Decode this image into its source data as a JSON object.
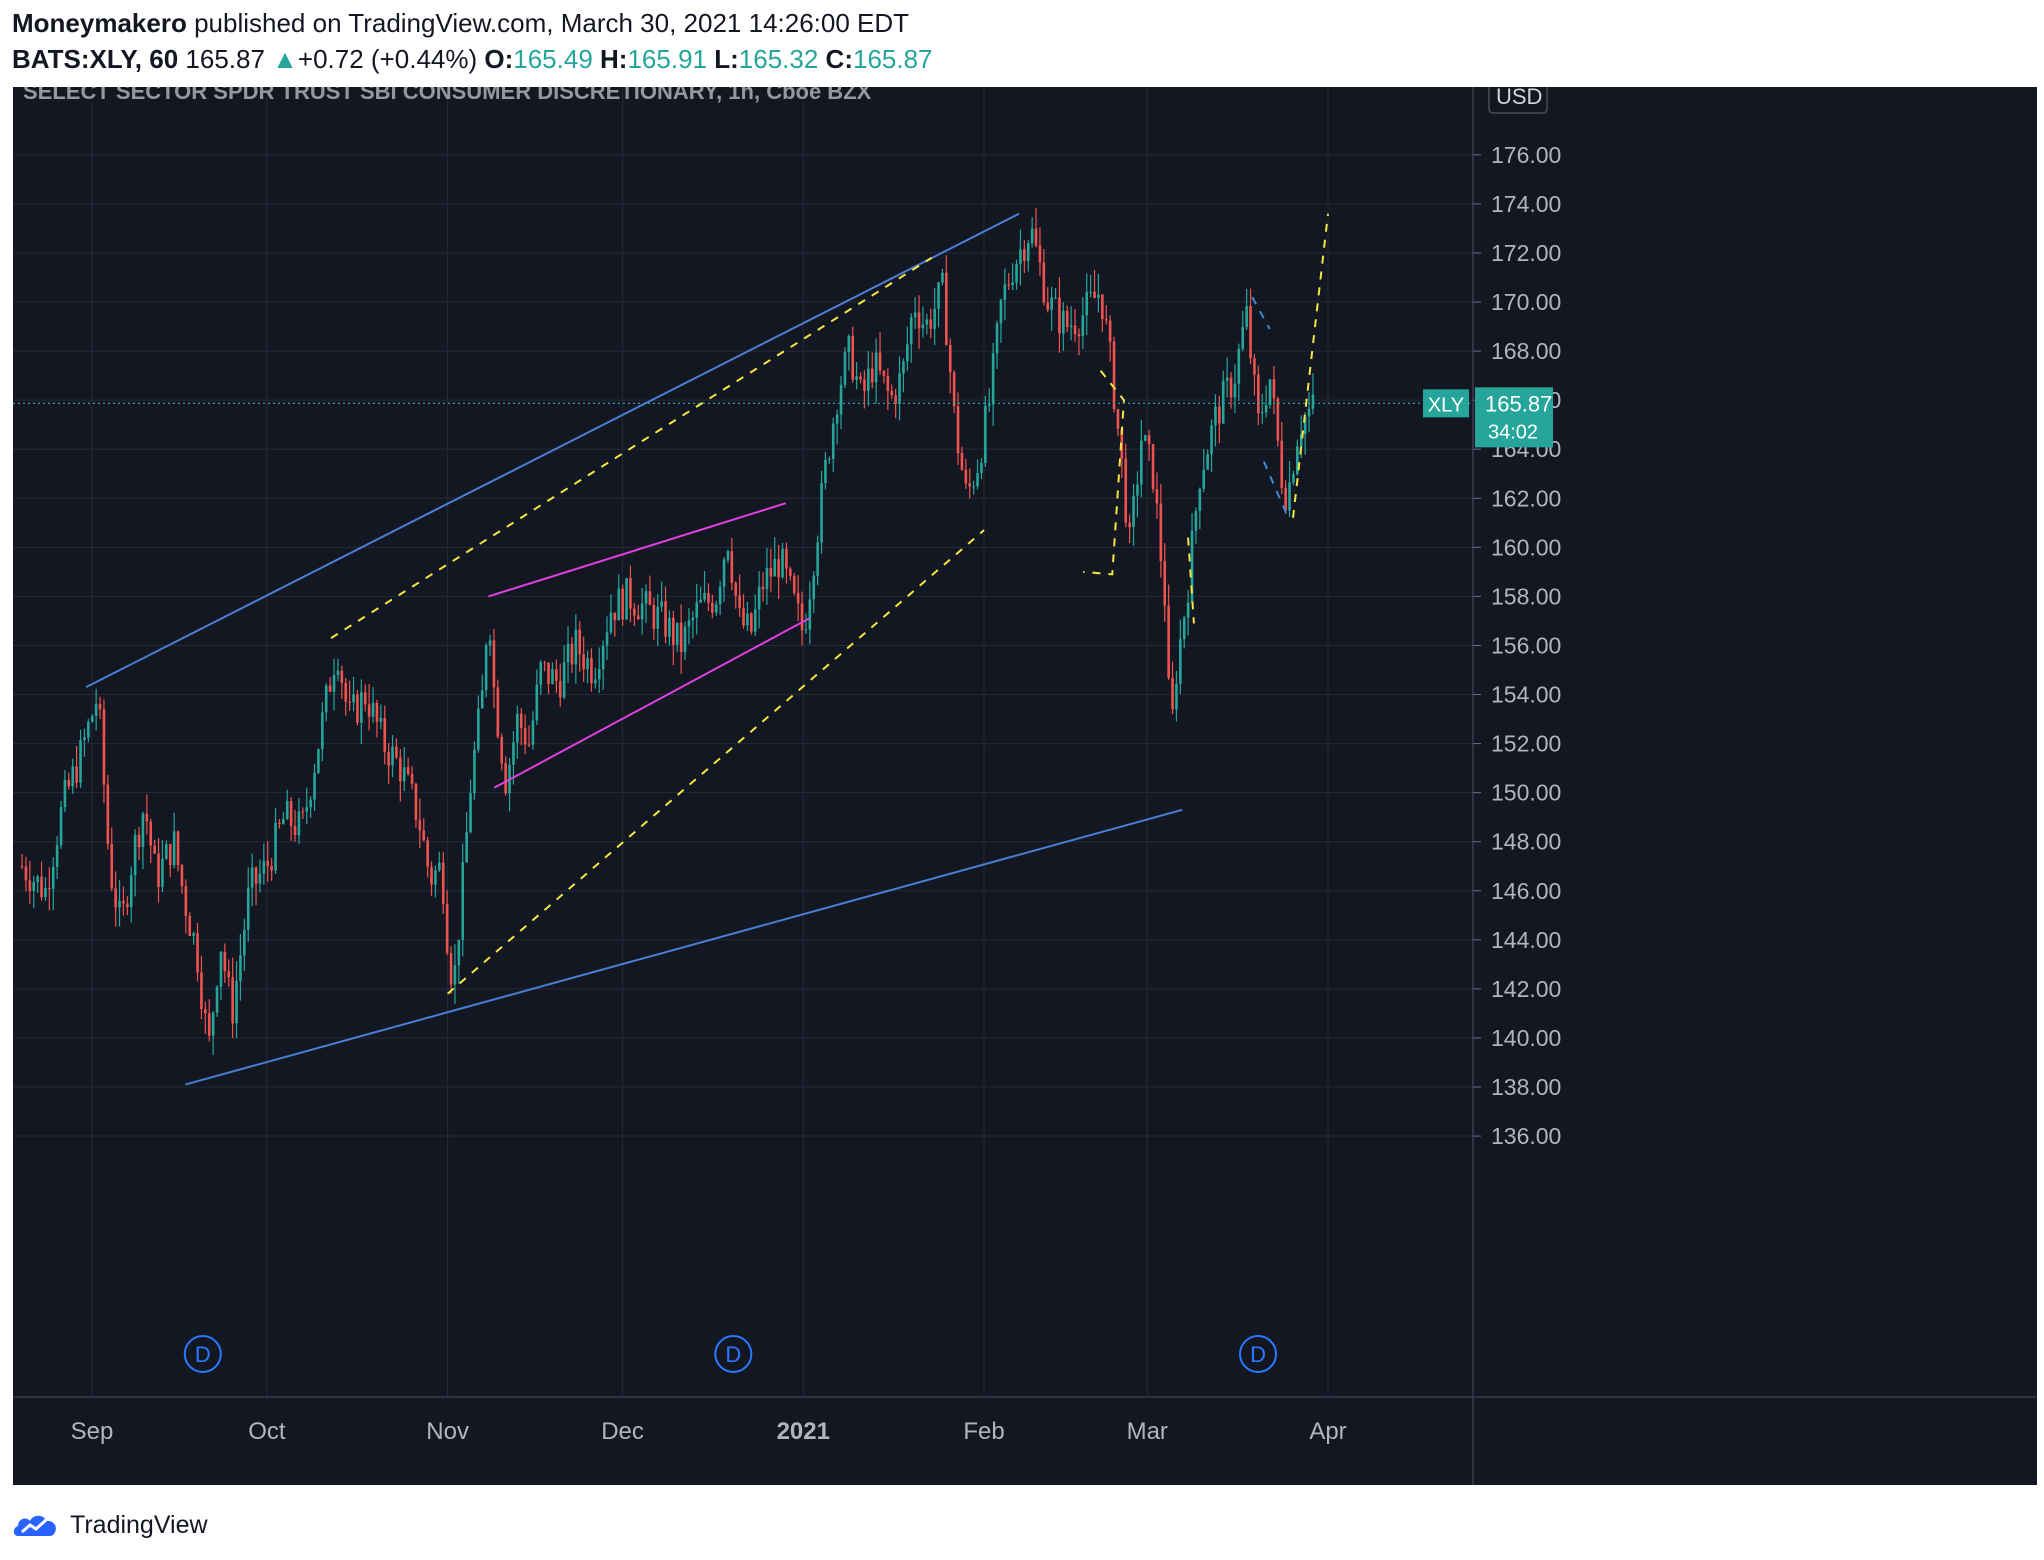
{
  "header": {
    "author": "Moneymakero",
    "published_text": "published on TradingView.com, March 30, 2021 14:26:00 EDT",
    "symbol": "BATS:XLY, 60",
    "last": "165.87",
    "change_arrow": "▲",
    "change": "+0.72 (+0.44%)",
    "o_label": "O:",
    "o": "165.49",
    "h_label": "H:",
    "h": "165.91",
    "l_label": "L:",
    "l": "165.32",
    "c_label": "C:",
    "c": "165.87"
  },
  "footer": {
    "logo_icon": "tradingview-cloud-icon",
    "brand": "TradingView"
  },
  "colors": {
    "up": "#26a69a",
    "down": "#ef5350",
    "trend_blue": "#4a7fd4",
    "channel_magenta": "#e040e0",
    "dashed_yellow": "#f5e642",
    "dashed_blue": "#3a8ad8",
    "background": "#131722"
  },
  "chart_data": {
    "type": "candlestick",
    "title": "SELECT SECTOR SPDR TRUST SBI CONSUMER DISCRETIONARY, 1h, Cboe BZX",
    "currency": "USD",
    "ylim": [
      136,
      176
    ],
    "y_ticks": [
      "136.00",
      "138.00",
      "140.00",
      "142.00",
      "144.00",
      "146.00",
      "148.00",
      "150.00",
      "152.00",
      "154.00",
      "156.00",
      "158.00",
      "160.00",
      "162.00",
      "164.00",
      "166.00",
      "168.00",
      "170.00",
      "172.00",
      "174.00",
      "176.00"
    ],
    "x_ticks": [
      {
        "label": "Sep",
        "date": "2020-09-01"
      },
      {
        "label": "Oct",
        "date": "2020-10-01"
      },
      {
        "label": "Nov",
        "date": "2020-11-01"
      },
      {
        "label": "Dec",
        "date": "2020-12-01"
      },
      {
        "label": "2021",
        "date": "2021-01-01",
        "bold": true
      },
      {
        "label": "Feb",
        "date": "2021-02-01"
      },
      {
        "label": "Mar",
        "date": "2021-03-01"
      },
      {
        "label": "Apr",
        "date": "2021-04-01"
      }
    ],
    "grid": true,
    "last_price": {
      "symbol": "XLY",
      "value": 165.87,
      "value_label": "165.87",
      "countdown": "34:02"
    },
    "dividend_markers": [
      {
        "date": "2020-09-20",
        "label": "D"
      },
      {
        "date": "2020-12-20",
        "label": "D"
      },
      {
        "date": "2021-03-20",
        "label": "D"
      }
    ],
    "price_path": [
      [
        "2020-08-20",
        147.0
      ],
      [
        "2020-08-24",
        146.0
      ],
      [
        "2020-08-27",
        149.5
      ],
      [
        "2020-08-30",
        151.5
      ],
      [
        "2020-09-02",
        154.0
      ],
      [
        "2020-09-04",
        147.0
      ],
      [
        "2020-09-06",
        144.5
      ],
      [
        "2020-09-08",
        147.5
      ],
      [
        "2020-09-10",
        149.5
      ],
      [
        "2020-09-12",
        146.5
      ],
      [
        "2020-09-15",
        148.0
      ],
      [
        "2020-09-17",
        145.5
      ],
      [
        "2020-09-19",
        143.5
      ],
      [
        "2020-09-21",
        139.5
      ],
      [
        "2020-09-23",
        144.0
      ],
      [
        "2020-09-25",
        141.0
      ],
      [
        "2020-09-28",
        146.0
      ],
      [
        "2020-10-01",
        147.0
      ],
      [
        "2020-10-04",
        149.0
      ],
      [
        "2020-10-07",
        148.5
      ],
      [
        "2020-10-09",
        151.0
      ],
      [
        "2020-10-11",
        153.5
      ],
      [
        "2020-10-13",
        156.0
      ],
      [
        "2020-10-15",
        153.0
      ],
      [
        "2020-10-18",
        154.0
      ],
      [
        "2020-10-21",
        152.0
      ],
      [
        "2020-10-24",
        151.0
      ],
      [
        "2020-10-27",
        149.0
      ],
      [
        "2020-10-29",
        146.5
      ],
      [
        "2020-10-31",
        147.0
      ],
      [
        "2020-11-01",
        144.0
      ],
      [
        "2020-11-02",
        142.0
      ],
      [
        "2020-11-04",
        147.5
      ],
      [
        "2020-11-05",
        150.5
      ],
      [
        "2020-11-07",
        154.0
      ],
      [
        "2020-11-08",
        158.0
      ],
      [
        "2020-11-09",
        154.0
      ],
      [
        "2020-11-11",
        150.5
      ],
      [
        "2020-11-13",
        153.0
      ],
      [
        "2020-11-15",
        152.0
      ],
      [
        "2020-11-17",
        155.0
      ],
      [
        "2020-11-20",
        154.5
      ],
      [
        "2020-11-23",
        156.0
      ],
      [
        "2020-11-26",
        155.0
      ],
      [
        "2020-11-29",
        157.5
      ],
      [
        "2020-12-02",
        158.0
      ],
      [
        "2020-12-05",
        157.5
      ],
      [
        "2020-12-08",
        157.0
      ],
      [
        "2020-12-11",
        156.0
      ],
      [
        "2020-12-14",
        157.5
      ],
      [
        "2020-12-17",
        158.0
      ],
      [
        "2020-12-19",
        160.5
      ],
      [
        "2020-12-21",
        157.0
      ],
      [
        "2020-12-23",
        156.5
      ],
      [
        "2020-12-25",
        158.5
      ],
      [
        "2020-12-28",
        159.5
      ],
      [
        "2020-12-30",
        158.0
      ],
      [
        "2021-01-01",
        156.5
      ],
      [
        "2021-01-03",
        160.0
      ],
      [
        "2021-01-05",
        163.5
      ],
      [
        "2021-01-07",
        166.5
      ],
      [
        "2021-01-09",
        168.0
      ],
      [
        "2021-01-11",
        166.0
      ],
      [
        "2021-01-13",
        167.5
      ],
      [
        "2021-01-16",
        166.0
      ],
      [
        "2021-01-18",
        167.0
      ],
      [
        "2021-01-20",
        170.0
      ],
      [
        "2021-01-22",
        169.0
      ],
      [
        "2021-01-25",
        170.5
      ],
      [
        "2021-01-27",
        165.0
      ],
      [
        "2021-01-29",
        162.0
      ],
      [
        "2021-01-31",
        163.5
      ],
      [
        "2021-02-02",
        166.0
      ],
      [
        "2021-02-04",
        170.0
      ],
      [
        "2021-02-06",
        171.5
      ],
      [
        "2021-02-09",
        173.0
      ],
      [
        "2021-02-12",
        170.0
      ],
      [
        "2021-02-15",
        169.0
      ],
      [
        "2021-02-18",
        169.5
      ],
      [
        "2021-02-21",
        170.5
      ],
      [
        "2021-02-23",
        167.0
      ],
      [
        "2021-02-25",
        162.5
      ],
      [
        "2021-02-26",
        160.0
      ],
      [
        "2021-02-28",
        164.5
      ],
      [
        "2021-03-02",
        163.0
      ],
      [
        "2021-03-04",
        158.0
      ],
      [
        "2021-03-05",
        152.0
      ],
      [
        "2021-03-06",
        155.0
      ],
      [
        "2021-03-08",
        158.5
      ],
      [
        "2021-03-10",
        163.0
      ],
      [
        "2021-03-13",
        165.5
      ],
      [
        "2021-03-16",
        167.0
      ],
      [
        "2021-03-18",
        169.5
      ],
      [
        "2021-03-20",
        165.0
      ],
      [
        "2021-03-22",
        167.0
      ],
      [
        "2021-03-24",
        163.0
      ],
      [
        "2021-03-25",
        162.0
      ],
      [
        "2021-03-27",
        165.0
      ],
      [
        "2021-03-30",
        165.87
      ]
    ],
    "drawings": [
      {
        "kind": "line",
        "color": "blue",
        "points": [
          [
            "2020-08-31",
            154.3
          ],
          [
            "2021-02-07",
            173.6
          ]
        ]
      },
      {
        "kind": "line",
        "color": "blue",
        "points": [
          [
            "2020-09-17",
            138.1
          ],
          [
            "2021-03-07",
            149.3
          ]
        ]
      },
      {
        "kind": "line",
        "color": "magenta",
        "points": [
          [
            "2020-11-08",
            158.0
          ],
          [
            "2020-12-29",
            161.8
          ]
        ]
      },
      {
        "kind": "line",
        "color": "magenta",
        "points": [
          [
            "2020-11-09",
            150.2
          ],
          [
            "2021-01-02",
            157.1
          ]
        ]
      },
      {
        "kind": "dashed",
        "color": "yellow",
        "points": [
          [
            "2020-10-12",
            156.3
          ],
          [
            "2021-01-23",
            171.8
          ]
        ]
      },
      {
        "kind": "dashed",
        "color": "yellow",
        "points": [
          [
            "2020-11-01",
            141.8
          ],
          [
            "2021-02-01",
            160.7
          ]
        ]
      },
      {
        "kind": "dashed",
        "color": "yellow",
        "points": [
          [
            "2021-02-21",
            167.2
          ],
          [
            "2021-02-25",
            166.0
          ],
          [
            "2021-02-23",
            158.9
          ],
          [
            "2021-02-18",
            159.0
          ]
        ]
      },
      {
        "kind": "dashed",
        "color": "yellow",
        "points": [
          [
            "2021-03-08",
            160.4
          ],
          [
            "2021-03-09",
            156.9
          ]
        ]
      },
      {
        "kind": "dashed",
        "color": "yellow",
        "points": [
          [
            "2021-03-26",
            161.2
          ],
          [
            "2021-04-01",
            173.6
          ]
        ]
      },
      {
        "kind": "dashed",
        "color": "blue",
        "points": [
          [
            "2021-03-19",
            170.2
          ],
          [
            "2021-03-22",
            168.9
          ]
        ]
      },
      {
        "kind": "dashed",
        "color": "blue",
        "points": [
          [
            "2021-03-21",
            163.5
          ],
          [
            "2021-03-25",
            161.3
          ]
        ]
      }
    ]
  }
}
